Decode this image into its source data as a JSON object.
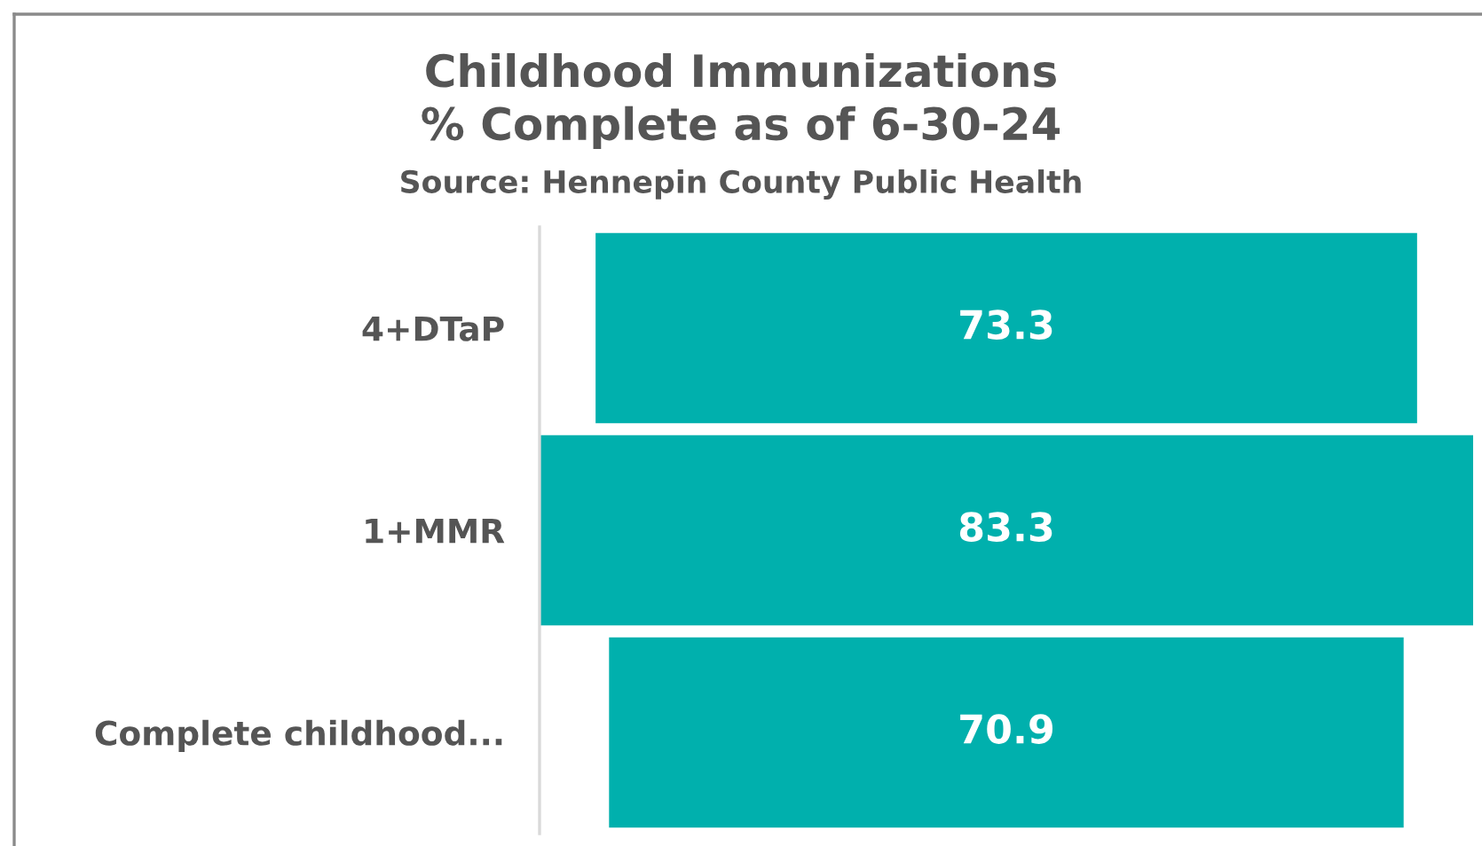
{
  "chart_data": {
    "type": "other",
    "title": "Childhood Immunizations\n% Complete as of 6-30-24",
    "annotations": [
      "Source: Hennepin County Public Health"
    ],
    "categories": [
      "4+DTaP",
      "1+MMR",
      "Complete childhood..."
    ],
    "values": [
      73.3,
      83.3,
      70.9
    ],
    "color": "#00b0ad",
    "data_labels": true
  }
}
